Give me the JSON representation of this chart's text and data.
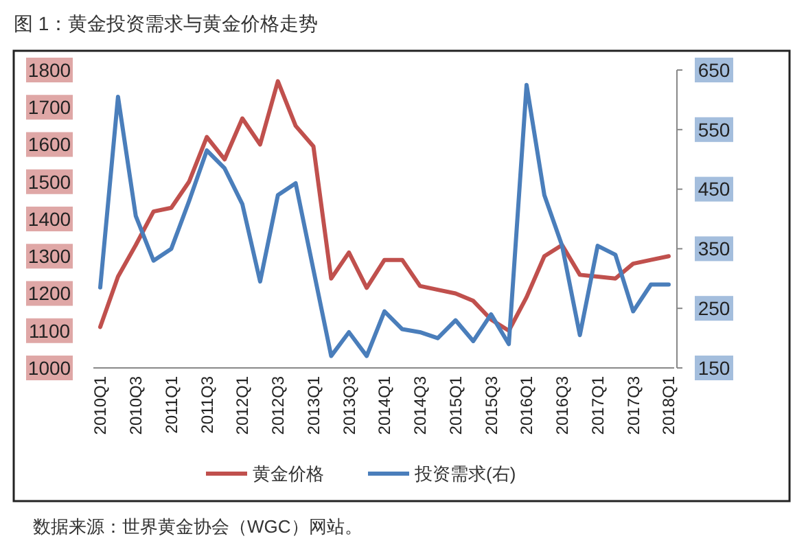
{
  "chart_data": {
    "type": "line",
    "title": "图 1：黄金投资需求与黄金价格走势",
    "categories": [
      "2010Q1",
      null,
      "2010Q3",
      null,
      "2011Q1",
      null,
      "2011Q3",
      null,
      "2012Q1",
      null,
      "2012Q3",
      null,
      "2013Q1",
      null,
      "2013Q3",
      null,
      "2014Q1",
      null,
      "2014Q3",
      null,
      "2015Q1",
      null,
      "2015Q3",
      null,
      "2016Q1",
      null,
      "2016Q3",
      null,
      "2017Q1",
      null,
      "2017Q3",
      null,
      "2018Q1"
    ],
    "series": [
      {
        "name": "黄金价格",
        "color": "#c0504d",
        "values": [
          1110,
          1245,
          1330,
          1420,
          1430,
          1500,
          1620,
          1560,
          1670,
          1600,
          1770,
          1650,
          1595,
          1240,
          1310,
          1215,
          1290,
          1290,
          1220,
          1210,
          1200,
          1180,
          1130,
          1100,
          1190,
          1300,
          1330,
          1250,
          1245,
          1240,
          1280,
          1290,
          1300
        ]
      },
      {
        "name": "投资需求(右)",
        "color": "#4a7ebb",
        "axis": "y2",
        "values": [
          285,
          605,
          405,
          330,
          350,
          430,
          515,
          485,
          425,
          295,
          440,
          460,
          315,
          170,
          210,
          170,
          245,
          215,
          210,
          200,
          230,
          195,
          240,
          190,
          625,
          440,
          355,
          205,
          355,
          340,
          245,
          290,
          290
        ]
      }
    ],
    "ylim": [
      1000,
      1800
    ],
    "yticks": [
      1000,
      1100,
      1200,
      1300,
      1400,
      1500,
      1600,
      1700,
      1800
    ],
    "y2lim": [
      150,
      650
    ],
    "y2ticks": [
      150,
      250,
      350,
      450,
      550,
      650
    ],
    "grid": false,
    "legend": "bottom",
    "marker": "none",
    "line_style": "solid",
    "annotations": [
      "数据来源：世界黄金协会（WGC）网站。"
    ]
  }
}
